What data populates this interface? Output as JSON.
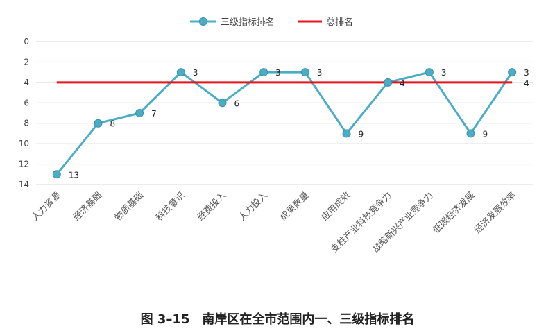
{
  "caption": "图 3–15　南岸区在全市范围内一、三级指标排名",
  "colors": {
    "series": "#4bacc6",
    "series_marker_stroke": "#3a8fa8",
    "total": "#e8141c",
    "grid": "#d9d9d9"
  },
  "chart_data": {
    "type": "line",
    "title": "",
    "xlabel": "",
    "ylabel": "",
    "ylim": [
      0,
      14
    ],
    "y_reversed": true,
    "y_ticks": [
      0,
      2,
      4,
      6,
      8,
      10,
      12,
      14
    ],
    "grid": true,
    "legend_position": "top",
    "categories": [
      "人力资源",
      "经济基础",
      "物质基础",
      "科技意识",
      "经费投入",
      "人力投入",
      "成果数量",
      "应用成效",
      "支柱产业科技竞争力",
      "战略新兴产业竞争力",
      "低碳经济发展",
      "经济发展效率"
    ],
    "series": [
      {
        "name": "三级指标排名",
        "values": [
          13,
          8,
          7,
          3,
          6,
          3,
          3,
          9,
          4,
          3,
          9,
          3
        ],
        "data_labels": [
          "13",
          "8",
          "7",
          "3",
          "6",
          "3",
          "3",
          "9",
          "4",
          "3",
          "9",
          "3"
        ]
      },
      {
        "name": "总排名",
        "values": [
          4,
          4,
          4,
          4,
          4,
          4,
          4,
          4,
          4,
          4,
          4,
          4
        ],
        "data_labels": [
          "4"
        ]
      }
    ]
  }
}
